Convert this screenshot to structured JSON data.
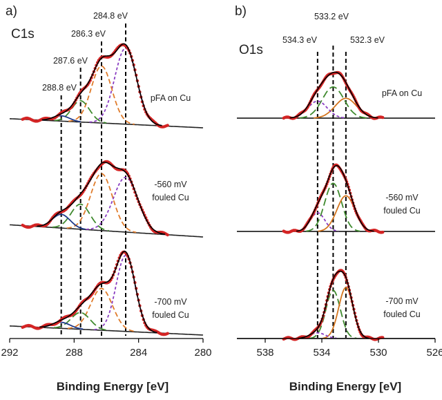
{
  "colors": {
    "data": "#d42424",
    "fit": "#000000",
    "background": "#222222",
    "c1s_comp_284_8": "#8a3ec2",
    "c1s_comp_286_3": "#e07b2a",
    "c1s_comp_287_6": "#3f8a2e",
    "c1s_comp_288_8": "#1f3a8a",
    "o1s_comp_532_3": "#d4751e",
    "o1s_comp_533_2": "#3f8a2e",
    "o1s_comp_534_3": "#8a3ec2",
    "o1s_baseline": "#000000"
  },
  "chart_data": [
    {
      "type": "line",
      "panel_letter": "a)",
      "element": "C1s",
      "xlabel": "Binding Energy [eV]",
      "ylabel": "",
      "x_reversed": true,
      "xlim": [
        292,
        280
      ],
      "xticks": [
        292,
        288,
        284,
        280
      ],
      "xtick_labels": [
        "292",
        "288",
        "284",
        "280"
      ],
      "grid": false,
      "legend": "none",
      "peak_guides": [
        {
          "energy": 288.8,
          "label": "288.8 eV"
        },
        {
          "energy": 287.6,
          "label": "287.6 eV"
        },
        {
          "energy": 286.3,
          "label": "286.3 eV"
        },
        {
          "energy": 284.8,
          "label": "284.8 eV"
        }
      ],
      "component_style": {
        "284.8": "purple-short-dash",
        "286.3": "orange-dash",
        "287.6": "green-long-dash",
        "288.8": "navy-solid"
      },
      "spectra": [
        {
          "sample": [
            "pFA on Cu"
          ],
          "components": [
            {
              "center": 284.8,
              "amplitude": 1.0,
              "fwhm": 1.6
            },
            {
              "center": 286.3,
              "amplitude": 0.75,
              "fwhm": 1.5
            },
            {
              "center": 287.6,
              "amplitude": 0.28,
              "fwhm": 1.3
            },
            {
              "center": 288.8,
              "amplitude": 0.07,
              "fwhm": 1.2
            }
          ]
        },
        {
          "sample": [
            "-560 mV",
            "fouled Cu"
          ],
          "components": [
            {
              "center": 284.8,
              "amplitude": 0.72,
              "fwhm": 1.8
            },
            {
              "center": 286.3,
              "amplitude": 0.75,
              "fwhm": 1.6
            },
            {
              "center": 287.6,
              "amplitude": 0.33,
              "fwhm": 1.4
            },
            {
              "center": 288.8,
              "amplitude": 0.18,
              "fwhm": 1.3
            }
          ]
        },
        {
          "sample": [
            "-700 mV",
            "fouled Cu"
          ],
          "components": [
            {
              "center": 284.8,
              "amplitude": 1.0,
              "fwhm": 1.4
            },
            {
              "center": 286.3,
              "amplitude": 0.55,
              "fwhm": 1.6
            },
            {
              "center": 287.6,
              "amplitude": 0.22,
              "fwhm": 1.4
            },
            {
              "center": 288.8,
              "amplitude": 0.08,
              "fwhm": 1.3
            }
          ]
        }
      ]
    },
    {
      "type": "line",
      "panel_letter": "b)",
      "element": "O1s",
      "xlabel": "Binding Energy [eV]",
      "ylabel": "",
      "x_reversed": true,
      "xlim": [
        540,
        526
      ],
      "xticks": [
        538,
        534,
        530,
        526
      ],
      "xtick_labels": [
        "538",
        "534",
        "530",
        "526"
      ],
      "grid": false,
      "legend": "none",
      "peak_guides": [
        {
          "energy": 534.3,
          "label": "534.3 eV"
        },
        {
          "energy": 533.2,
          "label": "533.2 eV"
        },
        {
          "energy": 532.3,
          "label": "532.3 eV"
        }
      ],
      "component_style": {
        "532.3": "orange-solid",
        "533.2": "green-long-dash",
        "534.3": "purple-short-dash"
      },
      "spectra": [
        {
          "sample": [
            "pFA on Cu"
          ],
          "components": [
            {
              "center": 533.2,
              "amplitude": 0.55,
              "fwhm": 1.8
            },
            {
              "center": 532.3,
              "amplitude": 0.35,
              "fwhm": 1.8
            },
            {
              "center": 534.3,
              "amplitude": 0.3,
              "fwhm": 1.6
            }
          ]
        },
        {
          "sample": [
            "-560 mV",
            "fouled Cu"
          ],
          "components": [
            {
              "center": 533.2,
              "amplitude": 0.85,
              "fwhm": 1.4
            },
            {
              "center": 532.3,
              "amplitude": 0.63,
              "fwhm": 1.5
            },
            {
              "center": 534.3,
              "amplitude": 0.33,
              "fwhm": 1.2
            }
          ]
        },
        {
          "sample": [
            "-700 mV",
            "fouled Cu"
          ],
          "components": [
            {
              "center": 533.2,
              "amplitude": 0.85,
              "fwhm": 1.2
            },
            {
              "center": 532.3,
              "amplitude": 0.9,
              "fwhm": 1.2
            },
            {
              "center": 534.3,
              "amplitude": 0.1,
              "fwhm": 1.3
            }
          ]
        }
      ]
    }
  ]
}
